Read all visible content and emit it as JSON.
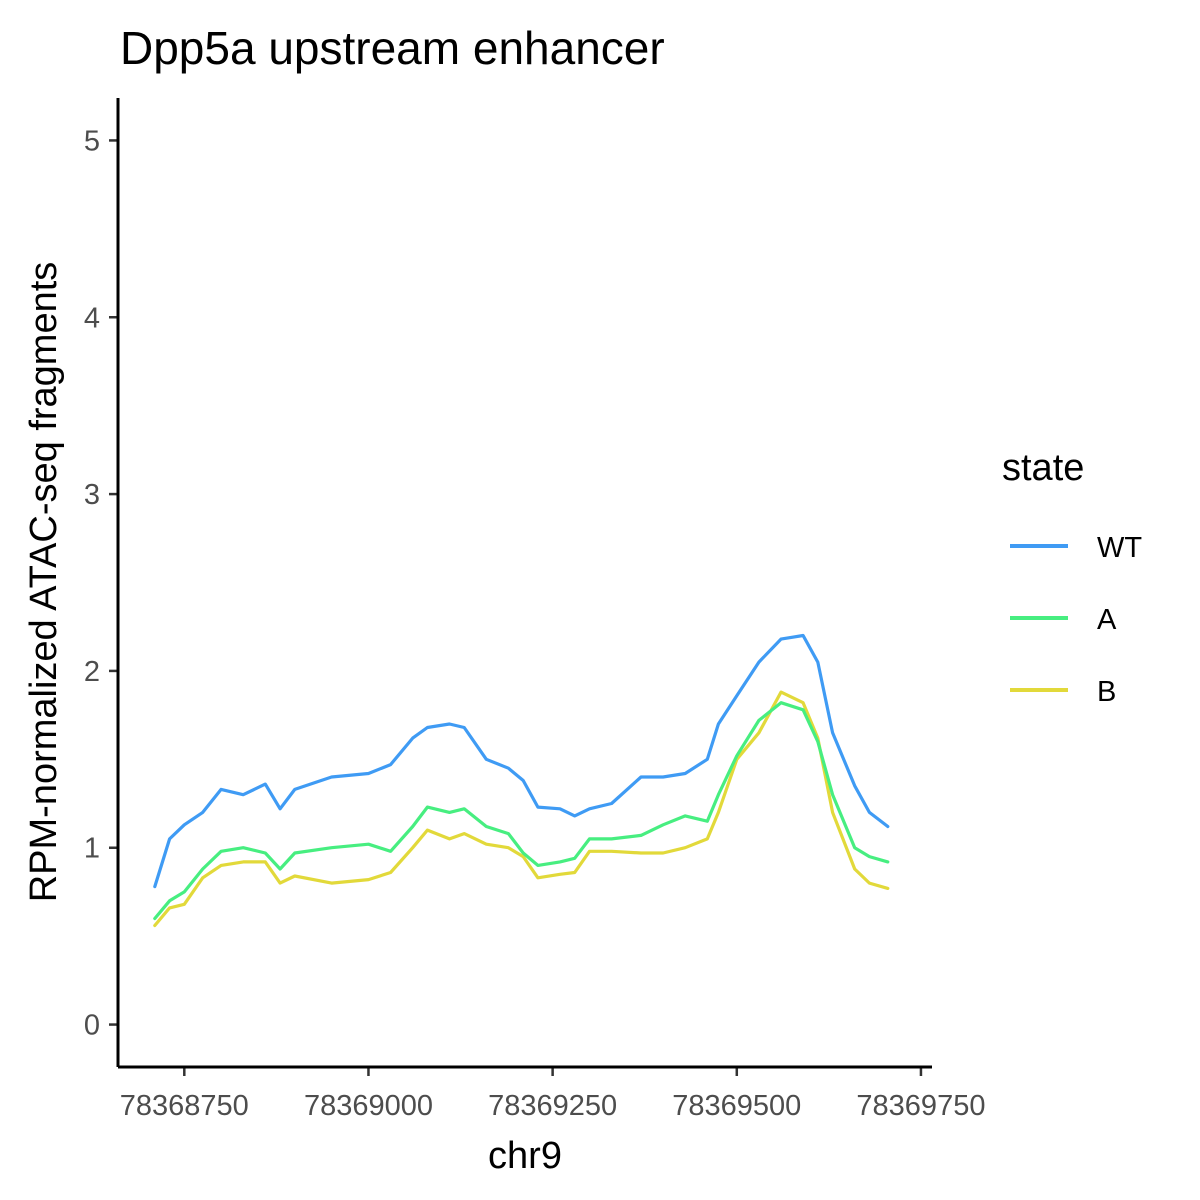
{
  "chart_data": {
    "type": "line",
    "title": "Dpp5a upstream enhancer",
    "xlabel": "chr9",
    "ylabel": "RPM-normalized ATAC-seq fragments",
    "xlim": [
      78368660,
      78369765
    ],
    "ylim": [
      -0.24,
      5.24
    ],
    "x_ticks": [
      78368750,
      78369000,
      78369250,
      78369500,
      78369750
    ],
    "x_tick_labels": [
      "78368750",
      "78369000",
      "78369250",
      "78369500",
      "78369750"
    ],
    "y_ticks": [
      0,
      1,
      2,
      3,
      4,
      5
    ],
    "y_tick_labels": [
      "0",
      "1",
      "2",
      "3",
      "4",
      "5"
    ],
    "grid": false,
    "legend": {
      "title": "state",
      "placement": "right"
    },
    "x": [
      78368710,
      78368730,
      78368750,
      78368775,
      78368800,
      78368830,
      78368860,
      78368880,
      78368900,
      78368950,
      78369000,
      78369030,
      78369060,
      78369080,
      78369110,
      78369130,
      78369160,
      78369190,
      78369210,
      78369230,
      78369260,
      78369280,
      78369300,
      78369330,
      78369370,
      78369400,
      78369430,
      78369460,
      78369475,
      78369500,
      78369530,
      78369560,
      78369590,
      78369610,
      78369630,
      78369660,
      78369680,
      78369705
    ],
    "series": [
      {
        "name": "WT",
        "color": "#3f9bf4",
        "values": [
          0.78,
          1.05,
          1.13,
          1.2,
          1.33,
          1.3,
          1.36,
          1.22,
          1.33,
          1.4,
          1.42,
          1.47,
          1.62,
          1.68,
          1.7,
          1.68,
          1.5,
          1.45,
          1.38,
          1.23,
          1.22,
          1.18,
          1.22,
          1.25,
          1.4,
          1.4,
          1.42,
          1.5,
          1.7,
          1.86,
          2.05,
          2.18,
          2.2,
          2.05,
          1.65,
          1.35,
          1.2,
          1.12
        ]
      },
      {
        "name": "A",
        "color": "#47ee80",
        "values": [
          0.6,
          0.7,
          0.75,
          0.88,
          0.98,
          1.0,
          0.97,
          0.88,
          0.97,
          1.0,
          1.02,
          0.98,
          1.12,
          1.23,
          1.2,
          1.22,
          1.12,
          1.08,
          0.97,
          0.9,
          0.92,
          0.94,
          1.05,
          1.05,
          1.07,
          1.13,
          1.18,
          1.15,
          1.3,
          1.52,
          1.72,
          1.82,
          1.78,
          1.6,
          1.3,
          1.0,
          0.95,
          0.92
        ]
      },
      {
        "name": "B",
        "color": "#e2d93a",
        "values": [
          0.56,
          0.66,
          0.68,
          0.83,
          0.9,
          0.92,
          0.92,
          0.8,
          0.84,
          0.8,
          0.82,
          0.86,
          1.0,
          1.1,
          1.05,
          1.08,
          1.02,
          1.0,
          0.95,
          0.83,
          0.85,
          0.86,
          0.98,
          0.98,
          0.97,
          0.97,
          1.0,
          1.05,
          1.2,
          1.5,
          1.65,
          1.88,
          1.82,
          1.62,
          1.2,
          0.88,
          0.8,
          0.77
        ]
      }
    ]
  }
}
